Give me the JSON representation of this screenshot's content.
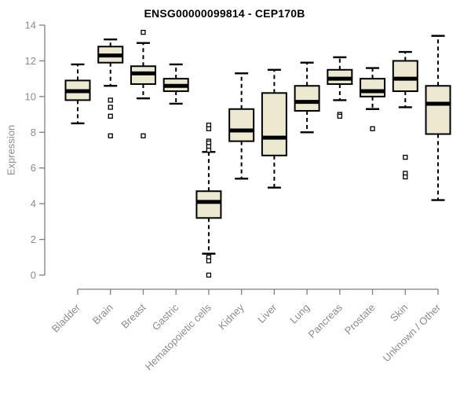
{
  "title": "ENSG00000099814 - CEP170B",
  "chart_data": {
    "type": "boxplot",
    "title": "ENSG00000099814 - CEP170B",
    "xlabel": "",
    "ylabel": "Expression",
    "ylim": [
      0,
      14
    ],
    "yticks": [
      0,
      2,
      4,
      6,
      8,
      10,
      12,
      14
    ],
    "grid": false,
    "legend": "none",
    "categories": [
      "Bladder",
      "Brain",
      "Breast",
      "Gastric",
      "Hematopoietic cells",
      "Kidney",
      "Liver",
      "Lung",
      "Pancreas",
      "Prostate",
      "Skin",
      "Unknown / Other"
    ],
    "series": [
      {
        "category": "Bladder",
        "whisker_low": 8.5,
        "q1": 9.8,
        "median": 10.3,
        "q3": 10.9,
        "whisker_high": 11.8,
        "outliers": []
      },
      {
        "category": "Brain",
        "whisker_low": 10.6,
        "q1": 11.9,
        "median": 12.3,
        "q3": 12.8,
        "whisker_high": 13.2,
        "outliers": [
          9.8,
          9.4,
          8.9,
          7.8
        ]
      },
      {
        "category": "Breast",
        "whisker_low": 9.9,
        "q1": 10.7,
        "median": 11.3,
        "q3": 11.7,
        "whisker_high": 13.0,
        "outliers": [
          13.6,
          7.8
        ]
      },
      {
        "category": "Gastric",
        "whisker_low": 9.6,
        "q1": 10.3,
        "median": 10.6,
        "q3": 11.0,
        "whisker_high": 11.8,
        "outliers": []
      },
      {
        "category": "Hematopoietic cells",
        "whisker_low": 1.2,
        "q1": 3.2,
        "median": 4.1,
        "q3": 4.7,
        "whisker_high": 6.9,
        "outliers": [
          8.4,
          8.2,
          7.5,
          7.4,
          7.2,
          7.0,
          1.0,
          0.8,
          0.0
        ]
      },
      {
        "category": "Kidney",
        "whisker_low": 5.4,
        "q1": 7.5,
        "median": 8.1,
        "q3": 9.3,
        "whisker_high": 11.3,
        "outliers": []
      },
      {
        "category": "Liver",
        "whisker_low": 4.9,
        "q1": 6.7,
        "median": 7.7,
        "q3": 10.2,
        "whisker_high": 11.5,
        "outliers": []
      },
      {
        "category": "Lung",
        "whisker_low": 8.0,
        "q1": 9.2,
        "median": 9.7,
        "q3": 10.6,
        "whisker_high": 11.9,
        "outliers": []
      },
      {
        "category": "Pancreas",
        "whisker_low": 9.8,
        "q1": 10.7,
        "median": 11.0,
        "q3": 11.5,
        "whisker_high": 12.2,
        "outliers": [
          9.0,
          8.9
        ]
      },
      {
        "category": "Prostate",
        "whisker_low": 9.3,
        "q1": 10.0,
        "median": 10.3,
        "q3": 11.0,
        "whisker_high": 11.6,
        "outliers": [
          8.2
        ]
      },
      {
        "category": "Skin",
        "whisker_low": 9.4,
        "q1": 10.3,
        "median": 11.0,
        "q3": 12.0,
        "whisker_high": 12.5,
        "outliers": [
          6.6,
          5.7,
          5.5
        ]
      },
      {
        "category": "Unknown / Other",
        "whisker_low": 4.2,
        "q1": 7.9,
        "median": 9.6,
        "q3": 10.6,
        "whisker_high": 13.4,
        "outliers": []
      }
    ],
    "colors": {
      "box_fill": "#ede8d0",
      "box_border": "#000000",
      "median": "#000000",
      "whisker": "#000000",
      "outlier_stroke": "#000000",
      "axis": "#7f7f7f",
      "axis_text": "#8c8c8c",
      "title_color": "#000000",
      "background": "#ffffff"
    }
  }
}
